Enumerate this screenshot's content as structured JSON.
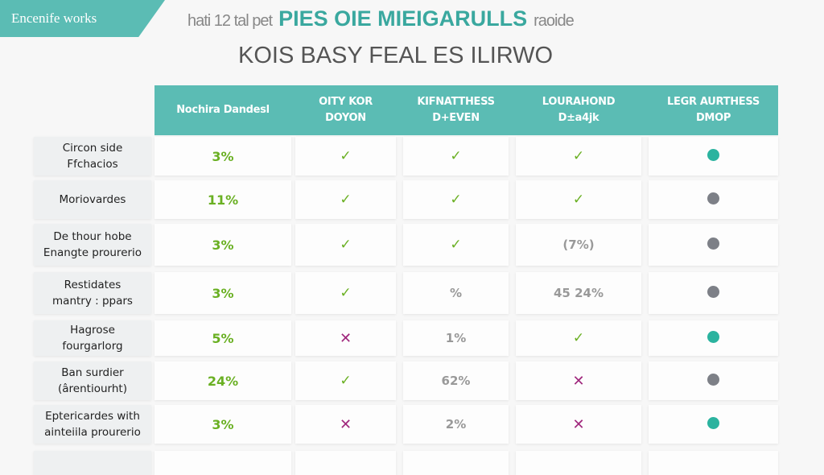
{
  "brand": "Encenife works",
  "header_line": {
    "pre": "hati 12 tal pet",
    "title": "PIES OIE MIEIGARULLS",
    "post": "raoide"
  },
  "subtitle": "KOIS BASY FEAL ES ILIRWO",
  "colors": {
    "accent": "#5bbcb4",
    "check": "#6ab023",
    "cross": "#a0287d",
    "dot_teal": "#2bb39f",
    "dot_gray": "#7d8087"
  },
  "columns": [
    {
      "l1": "Nochira Dandesl",
      "l2": ""
    },
    {
      "l1": "OITY KOR",
      "l2": "DOYON"
    },
    {
      "l1": "KIFNATTHESS",
      "l2": "D+EVEN"
    },
    {
      "l1": "LOURAHOND",
      "l2": "D±a4jk"
    },
    {
      "l1": "LEGR AURTHESS",
      "l2": "DMOP"
    }
  ],
  "rows": [
    {
      "label": [
        "Circon side",
        "Ffchacios"
      ],
      "pct": "3%",
      "c": [
        {
          "type": "check"
        },
        {
          "type": "check"
        },
        {
          "type": "check"
        },
        {
          "type": "dot",
          "color": "teal"
        }
      ]
    },
    {
      "label": [
        "Moriovardes",
        ""
      ],
      "pct": "11%",
      "c": [
        {
          "type": "check"
        },
        {
          "type": "check"
        },
        {
          "type": "check"
        },
        {
          "type": "dot",
          "color": "gray"
        }
      ]
    },
    {
      "label": [
        "De thour hobe",
        "Enangte prourerio"
      ],
      "pct": "3%",
      "c": [
        {
          "type": "check"
        },
        {
          "type": "check"
        },
        {
          "type": "text",
          "text": "(7%)"
        },
        {
          "type": "dot",
          "color": "gray"
        }
      ]
    },
    {
      "label": [
        "Restidates",
        "mantry : ppars"
      ],
      "pct": "3%",
      "c": [
        {
          "type": "check"
        },
        {
          "type": "text",
          "text": "%"
        },
        {
          "type": "text",
          "text": "45 24%"
        },
        {
          "type": "dot",
          "color": "gray"
        }
      ]
    },
    {
      "label": [
        "Hagrose",
        "fourgarlorg"
      ],
      "pct": "5%",
      "c": [
        {
          "type": "cross"
        },
        {
          "type": "text",
          "text": "1%"
        },
        {
          "type": "check"
        },
        {
          "type": "dot",
          "color": "teal"
        }
      ]
    },
    {
      "label": [
        "Ban surdier",
        "(ârentiourht)"
      ],
      "pct": "24%",
      "c": [
        {
          "type": "check"
        },
        {
          "type": "text",
          "text": "62%"
        },
        {
          "type": "cross"
        },
        {
          "type": "dot",
          "color": "gray"
        }
      ]
    },
    {
      "label": [
        "Eptericardes with",
        "ainteiila prourerio"
      ],
      "pct": "3%",
      "c": [
        {
          "type": "cross"
        },
        {
          "type": "text",
          "text": "2%"
        },
        {
          "type": "cross"
        },
        {
          "type": "dot",
          "color": "teal"
        }
      ]
    }
  ]
}
